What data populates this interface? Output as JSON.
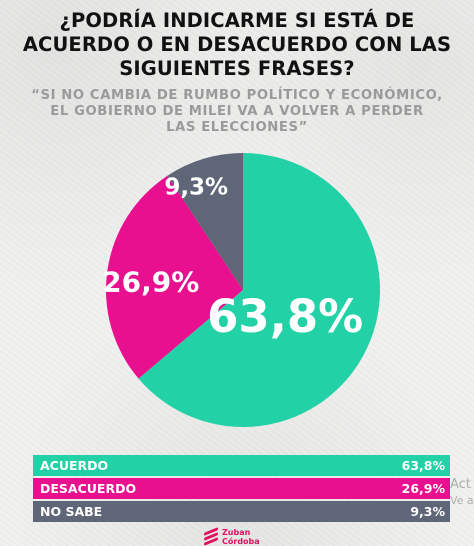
{
  "title": "¿PODRÍA INDICARME SI ESTÁ DE\nACUERDO O EN DESACUERDO CON LAS\nSIGUIENTES FRASES?",
  "subtitle": "“SI NO CAMBIA DE RUMBO POLÍTICO Y ECONÓMICO,\nEL GOBIERNO DE MILEI VA A VOLVER A PERDER\nLAS ELECCIONES”",
  "chart_data": {
    "type": "pie",
    "title": "¿PODRÍA INDICARME SI ESTÁ DE ACUERDO O EN DESACUERDO CON LAS SIGUIENTES FRASES?",
    "subtitle": "“SI NO CAMBIA DE RUMBO POLÍTICO Y ECONÓMICO, EL GOBIERNO DE MILEI VA A VOLVER A PERDER LAS ELECCIONES”",
    "categories": [
      "ACUERDO",
      "DESACUERDO",
      "NO SABE"
    ],
    "values": [
      63.8,
      26.9,
      9.3
    ],
    "labels": [
      "63,8%",
      "26,9%",
      "9,3%"
    ],
    "colors": [
      "#22d1a6",
      "#e8108f",
      "#5f6678"
    ],
    "legend": "bottom",
    "legend_entries": [
      {
        "label": "ACUERDO",
        "value": "63,8%",
        "color": "#22d1a6"
      },
      {
        "label": "DESACUERDO",
        "value": "26,9%",
        "color": "#e8108f"
      },
      {
        "label": "NO SABE",
        "value": "9,3%",
        "color": "#5f6678"
      }
    ]
  },
  "logo": {
    "text": "Zuban\nCórdoba",
    "colors": [
      "#e0115f",
      "#e0115f",
      "#e0115f"
    ]
  },
  "watermark": {
    "line1": "Act",
    "line2": "Ve a"
  }
}
